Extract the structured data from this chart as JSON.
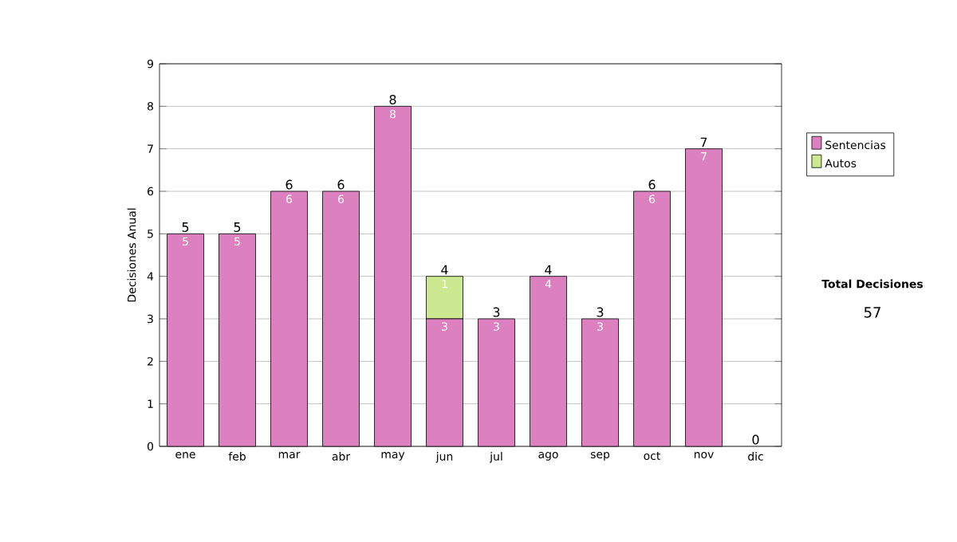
{
  "chart_data": {
    "type": "bar",
    "stacked": true,
    "ylabel": "Decisiones Anual",
    "categories": [
      "ene",
      "feb",
      "mar",
      "abr",
      "may",
      "jun",
      "jul",
      "ago",
      "sep",
      "oct",
      "nov",
      "dic"
    ],
    "series": [
      {
        "name": "Sentencias",
        "color": "#dd80c0",
        "values": [
          5,
          5,
          6,
          6,
          8,
          3,
          3,
          4,
          3,
          6,
          7,
          0
        ],
        "value_labels": [
          "5",
          "5",
          "6",
          "6",
          "8",
          "3",
          "3",
          "4",
          "3",
          "6",
          "7",
          null
        ]
      },
      {
        "name": "Autos",
        "color": "#cce890",
        "values": [
          0,
          0,
          0,
          0,
          0,
          1,
          0,
          0,
          0,
          0,
          0,
          0
        ],
        "value_labels": [
          null,
          null,
          null,
          null,
          null,
          "1",
          null,
          null,
          null,
          null,
          null,
          null
        ]
      }
    ],
    "totals": [
      "5",
      "5",
      "6",
      "6",
      "8",
      "4",
      "3",
      "4",
      "3",
      "6",
      "7",
      "0"
    ],
    "ylim": [
      0,
      9
    ],
    "yticks": [
      0,
      1,
      2,
      3,
      4,
      5,
      6,
      7,
      8,
      9
    ],
    "grid": "y",
    "legend": "right",
    "annotations": [
      "Total Decisiones",
      "57"
    ]
  }
}
